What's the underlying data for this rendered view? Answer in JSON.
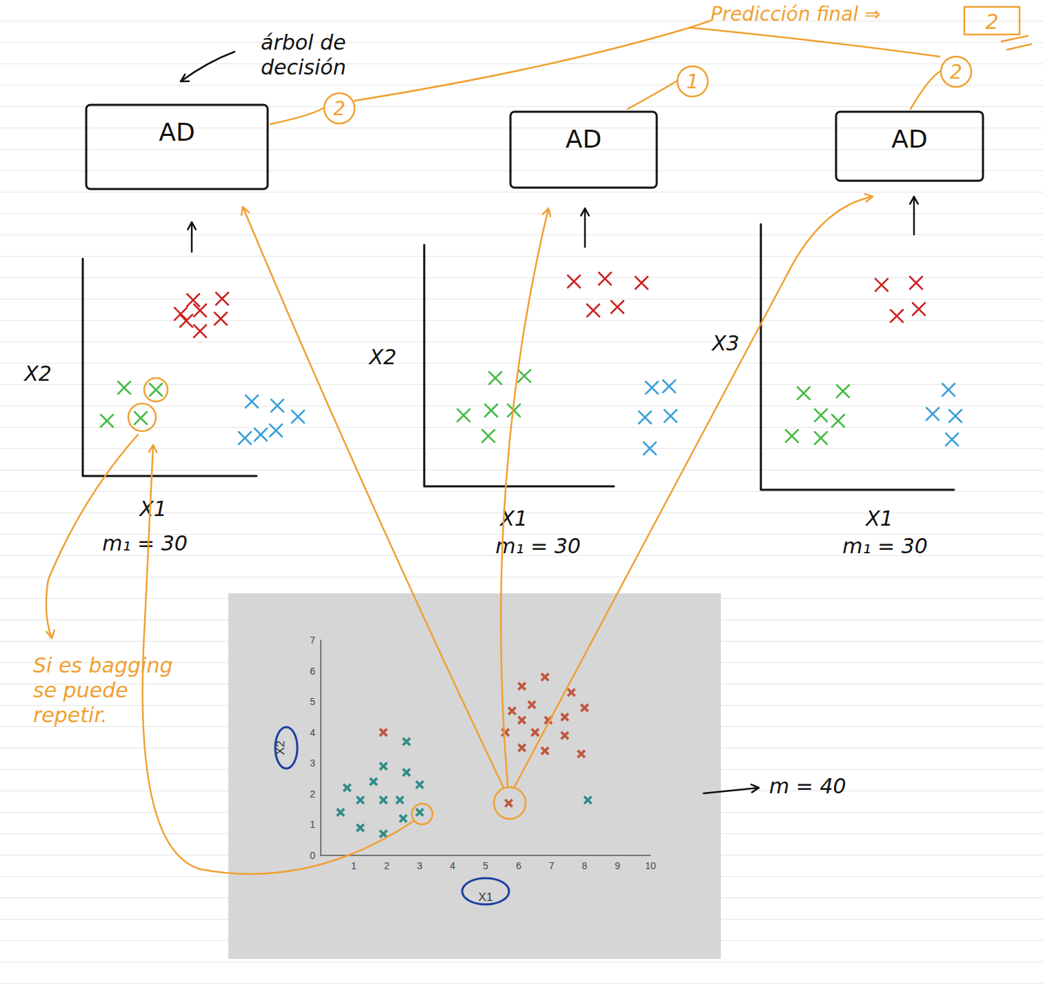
{
  "header": {
    "tree_caption": "árbol de decisión",
    "final_prediction_label": "Predicción final ⇒",
    "final_prediction": "2"
  },
  "trees": [
    {
      "label": "AD",
      "prediction": "2",
      "x_label": "X1",
      "y_label": "X2",
      "sample_label": "m₁ = 30"
    },
    {
      "label": "AD",
      "prediction": "1",
      "x_label": "X1",
      "y_label": "X2",
      "sample_label": "m₁ = 30"
    },
    {
      "label": "AD",
      "prediction": "2",
      "x_label": "X1",
      "y_label": "X3",
      "sample_label": "m₁ = 30"
    }
  ],
  "notes": {
    "bagging": "Si es bagging se puede repetir.",
    "dataset_size": "m = 40"
  },
  "chart_data": {
    "type": "scatter",
    "x_label": "X1",
    "y_label": "X2",
    "xlim": [
      0,
      10
    ],
    "ylim": [
      0,
      7
    ],
    "xticks": [
      1,
      2,
      3,
      4,
      5,
      6,
      7,
      8,
      9,
      10
    ],
    "yticks": [
      0,
      1,
      2,
      3,
      4,
      5,
      6,
      7
    ],
    "series": [
      {
        "color": "#2f8c87",
        "marker": "x",
        "values": [
          [
            0.8,
            2.2
          ],
          [
            0.6,
            1.4
          ],
          [
            1.2,
            0.9
          ],
          [
            1.2,
            1.8
          ],
          [
            1.6,
            2.4
          ],
          [
            1.9,
            2.9
          ],
          [
            1.9,
            1.8
          ],
          [
            1.9,
            0.7
          ],
          [
            2.4,
            1.8
          ],
          [
            2.6,
            3.7
          ],
          [
            2.6,
            2.7
          ],
          [
            2.5,
            1.2
          ],
          [
            3.0,
            2.3
          ],
          [
            3.0,
            1.4
          ],
          [
            8.1,
            1.8
          ]
        ]
      },
      {
        "color": "#c0563e",
        "marker": "x",
        "values": [
          [
            1.9,
            4.0
          ],
          [
            6.1,
            5.5
          ],
          [
            6.8,
            5.8
          ],
          [
            7.6,
            5.3
          ],
          [
            5.8,
            4.7
          ],
          [
            6.4,
            4.9
          ],
          [
            6.1,
            4.4
          ],
          [
            6.9,
            4.4
          ],
          [
            7.4,
            4.5
          ],
          [
            8.0,
            4.8
          ],
          [
            5.6,
            4.0
          ],
          [
            6.5,
            4.0
          ],
          [
            7.4,
            3.9
          ],
          [
            6.1,
            3.5
          ],
          [
            6.8,
            3.4
          ],
          [
            7.9,
            3.3
          ],
          [
            5.7,
            1.7
          ]
        ]
      }
    ]
  }
}
